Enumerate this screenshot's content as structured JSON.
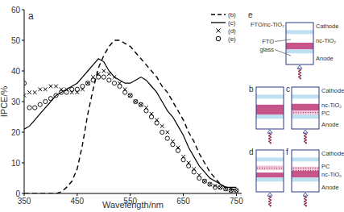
{
  "chart_data": {
    "type": "line",
    "annotations": [
      "a"
    ],
    "x_label": "Wavelength/nm",
    "y_label": "IPCE/%",
    "xlim": [
      350,
      760
    ],
    "xticks": [
      350,
      450,
      550,
      650,
      750
    ],
    "ylim": [
      0,
      60
    ],
    "yticks": [
      0,
      10,
      20,
      30,
      40,
      50,
      60
    ],
    "grid": false,
    "legend": "upper right",
    "x": [
      350,
      360,
      370,
      380,
      390,
      400,
      410,
      420,
      430,
      440,
      450,
      460,
      470,
      480,
      490,
      500,
      510,
      520,
      530,
      540,
      550,
      560,
      570,
      580,
      590,
      600,
      610,
      620,
      630,
      640,
      650,
      660,
      670,
      680,
      690,
      700,
      710,
      720,
      730,
      740,
      750
    ],
    "series": [
      {
        "name": "(b)",
        "type": "line",
        "line_style": "dashed",
        "color": "#000000",
        "values": [
          0,
          0,
          0,
          0,
          0,
          0,
          0,
          0.5,
          2,
          4,
          8,
          16,
          26,
          34,
          41,
          45,
          48,
          50,
          50,
          49,
          48,
          46,
          44,
          42,
          40,
          38,
          35,
          33,
          30,
          27,
          24,
          20,
          17,
          13,
          10,
          7,
          5,
          3,
          2,
          1.5,
          1
        ]
      },
      {
        "name": "(c)",
        "type": "line",
        "line_style": "solid",
        "color": "#000000",
        "values": [
          21,
          22,
          24,
          26,
          28,
          30,
          32,
          33,
          34,
          35,
          36,
          38,
          40,
          42,
          44,
          43,
          40,
          38,
          37,
          36,
          36,
          37,
          38,
          37,
          35,
          33,
          30,
          27,
          25,
          22,
          19,
          15,
          12,
          9,
          7,
          5,
          4,
          3,
          2,
          2,
          2
        ]
      },
      {
        "name": "(d)",
        "type": "scatter",
        "marker": "x",
        "color": "#000000",
        "values": [
          32,
          33,
          33,
          34,
          34,
          35,
          35,
          34,
          34,
          33,
          33,
          34,
          36,
          38,
          39,
          40,
          39,
          38,
          36,
          34,
          32,
          30,
          29,
          28,
          26,
          24,
          22,
          20,
          17,
          15,
          12,
          10,
          8,
          6,
          4,
          3,
          2.5,
          2,
          1.5,
          1,
          1
        ]
      },
      {
        "name": "(e)",
        "type": "scatter",
        "marker": "circle",
        "color": "#000000",
        "values": [
          36,
          28,
          28,
          29,
          30,
          31,
          32,
          33,
          33,
          34,
          34,
          35,
          36,
          37,
          38,
          38,
          37,
          36,
          35,
          33,
          32,
          30,
          29,
          27,
          25,
          23,
          20,
          18,
          16,
          14,
          11,
          9,
          7,
          5,
          4,
          3,
          2,
          2,
          1.5,
          1,
          1
        ]
      }
    ]
  },
  "schematics": {
    "panels": [
      {
        "letter": "e",
        "labels_left": [
          "FTO/nc-TiO₂",
          "FTO",
          "glass"
        ],
        "labels_right": [
          "Cathode",
          "nc-TiO₂",
          "Anode"
        ]
      },
      {
        "letter": "b",
        "labels_left": [],
        "labels_right": []
      },
      {
        "letter": "c",
        "labels_left": [],
        "labels_right": [
          "Cathode",
          "nc-TiO₂",
          "PC",
          "Anode"
        ]
      },
      {
        "letter": "d",
        "labels_left": [],
        "labels_right": []
      },
      {
        "letter": "f",
        "labels_left": [],
        "labels_right": [
          "Cathode",
          "PC",
          "nc-TiO₂",
          "Anode"
        ]
      }
    ]
  }
}
